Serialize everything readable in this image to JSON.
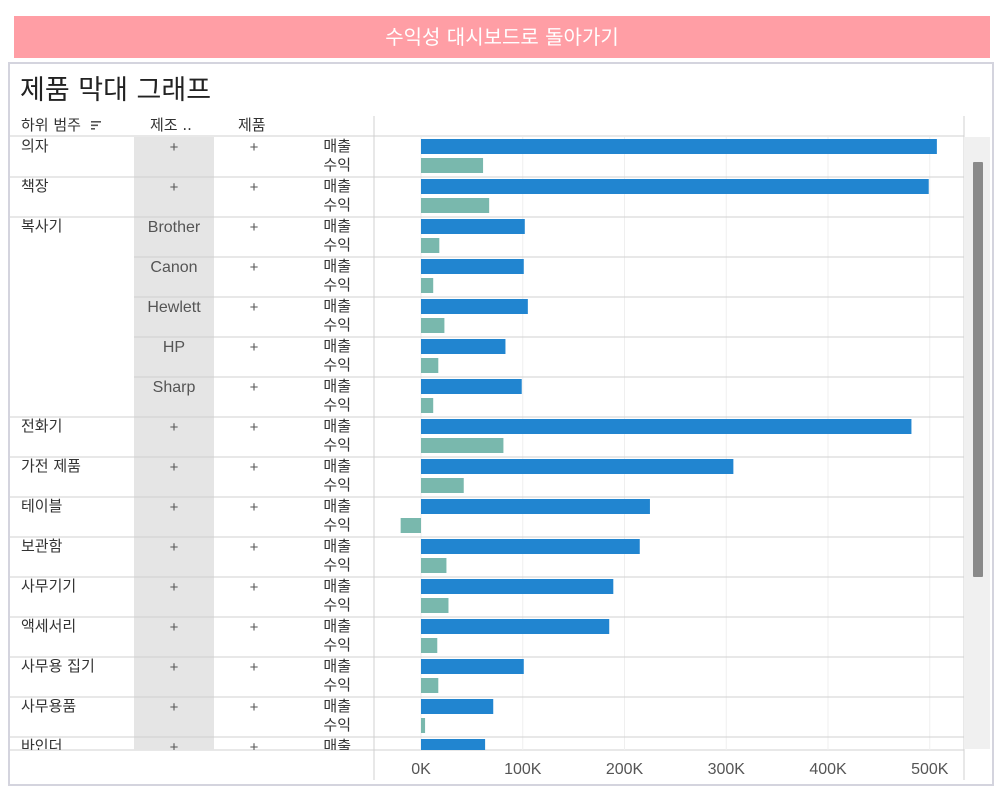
{
  "nav": {
    "back_label": "수익성 대시보드로 돌아가기"
  },
  "header": {
    "title": "제품 막대 그래프",
    "col_subcategory": "하위 범주",
    "col_manufacturer": "제조 ..",
    "col_product": "제품",
    "sort_icon": "sort-descending-icon"
  },
  "colors": {
    "sales": "#2185d0",
    "profit": "#79b8ad",
    "manufacturer_band": "#e5e5e5",
    "back_button": "#ff9ea5"
  },
  "chart_data": {
    "type": "bar",
    "orientation": "horizontal",
    "measures": [
      "매출",
      "수익"
    ],
    "expand_symbol": "+",
    "x_ticks": [
      "0K",
      "100K",
      "200K",
      "300K",
      "400K",
      "500K"
    ],
    "xlim": [
      -20000,
      530000
    ],
    "rows": [
      {
        "subcategory": "의자",
        "manufacturer": "+",
        "product": "+",
        "sales": 507000,
        "profit": 61000
      },
      {
        "subcategory": "책장",
        "manufacturer": "+",
        "product": "+",
        "sales": 499000,
        "profit": 67000
      },
      {
        "subcategory": "복사기",
        "manufacturer": "Brother",
        "product": "+",
        "sales": 102000,
        "profit": 18000
      },
      {
        "subcategory": "",
        "manufacturer": "Canon",
        "product": "+",
        "sales": 101000,
        "profit": 12000
      },
      {
        "subcategory": "",
        "manufacturer": "Hewlett",
        "product": "+",
        "sales": 105000,
        "profit": 23000
      },
      {
        "subcategory": "",
        "manufacturer": "HP",
        "product": "+",
        "sales": 83000,
        "profit": 17000
      },
      {
        "subcategory": "",
        "manufacturer": "Sharp",
        "product": "+",
        "sales": 99000,
        "profit": 12000
      },
      {
        "subcategory": "전화기",
        "manufacturer": "+",
        "product": "+",
        "sales": 482000,
        "profit": 81000
      },
      {
        "subcategory": "가전 제품",
        "manufacturer": "+",
        "product": "+",
        "sales": 307000,
        "profit": 42000
      },
      {
        "subcategory": "테이블",
        "manufacturer": "+",
        "product": "+",
        "sales": 225000,
        "profit": -20000
      },
      {
        "subcategory": "보관함",
        "manufacturer": "+",
        "product": "+",
        "sales": 215000,
        "profit": 25000
      },
      {
        "subcategory": "사무기기",
        "manufacturer": "+",
        "product": "+",
        "sales": 189000,
        "profit": 27000
      },
      {
        "subcategory": "액세서리",
        "manufacturer": "+",
        "product": "+",
        "sales": 185000,
        "profit": 16000
      },
      {
        "subcategory": "사무용 집기",
        "manufacturer": "+",
        "product": "+",
        "sales": 101000,
        "profit": 17000
      },
      {
        "subcategory": "사무용품",
        "manufacturer": "+",
        "product": "+",
        "sales": 71000,
        "profit": 4000
      },
      {
        "subcategory": "바인더",
        "manufacturer": "+",
        "product": "+",
        "sales": 63000,
        "profit": null
      }
    ]
  }
}
